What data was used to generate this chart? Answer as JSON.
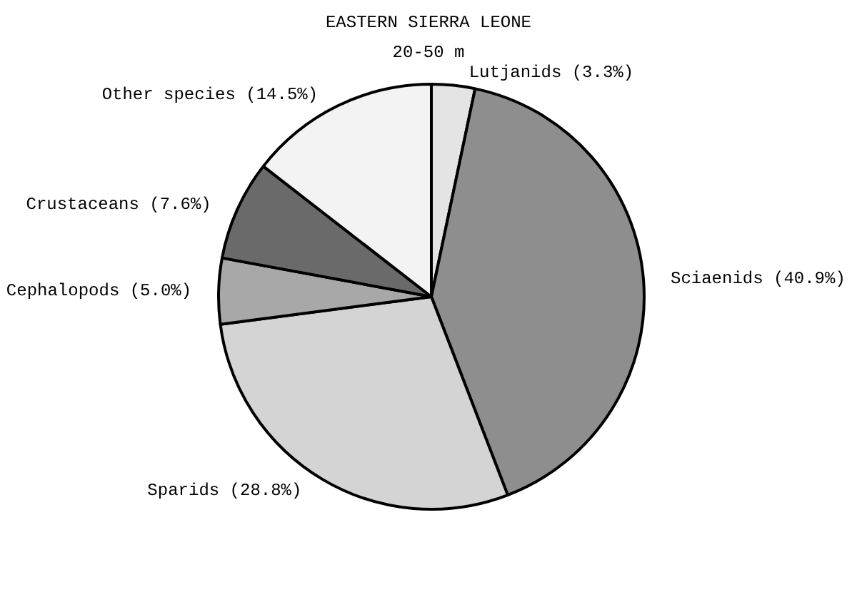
{
  "chart_data": {
    "type": "pie",
    "title": "EASTERN SIERRA LEONE",
    "subtitle": "20-50 m",
    "categories": [
      "Lutjanids",
      "Sciaenids",
      "Sparids",
      "Cephalopods",
      "Crustaceans",
      "Other species"
    ],
    "values": [
      3.3,
      40.9,
      28.8,
      5.0,
      7.6,
      14.5
    ],
    "value_labels": [
      "(3.3%)",
      "(40.9%)",
      "(28.8%)",
      "(5.0%)",
      "(7.6%)",
      "(14.5%)"
    ],
    "colors": [
      "#e4e4e4",
      "#8e8e8e",
      "#d4d4d4",
      "#a8a8a8",
      "#6a6a6a",
      "#f3f3f3"
    ]
  }
}
